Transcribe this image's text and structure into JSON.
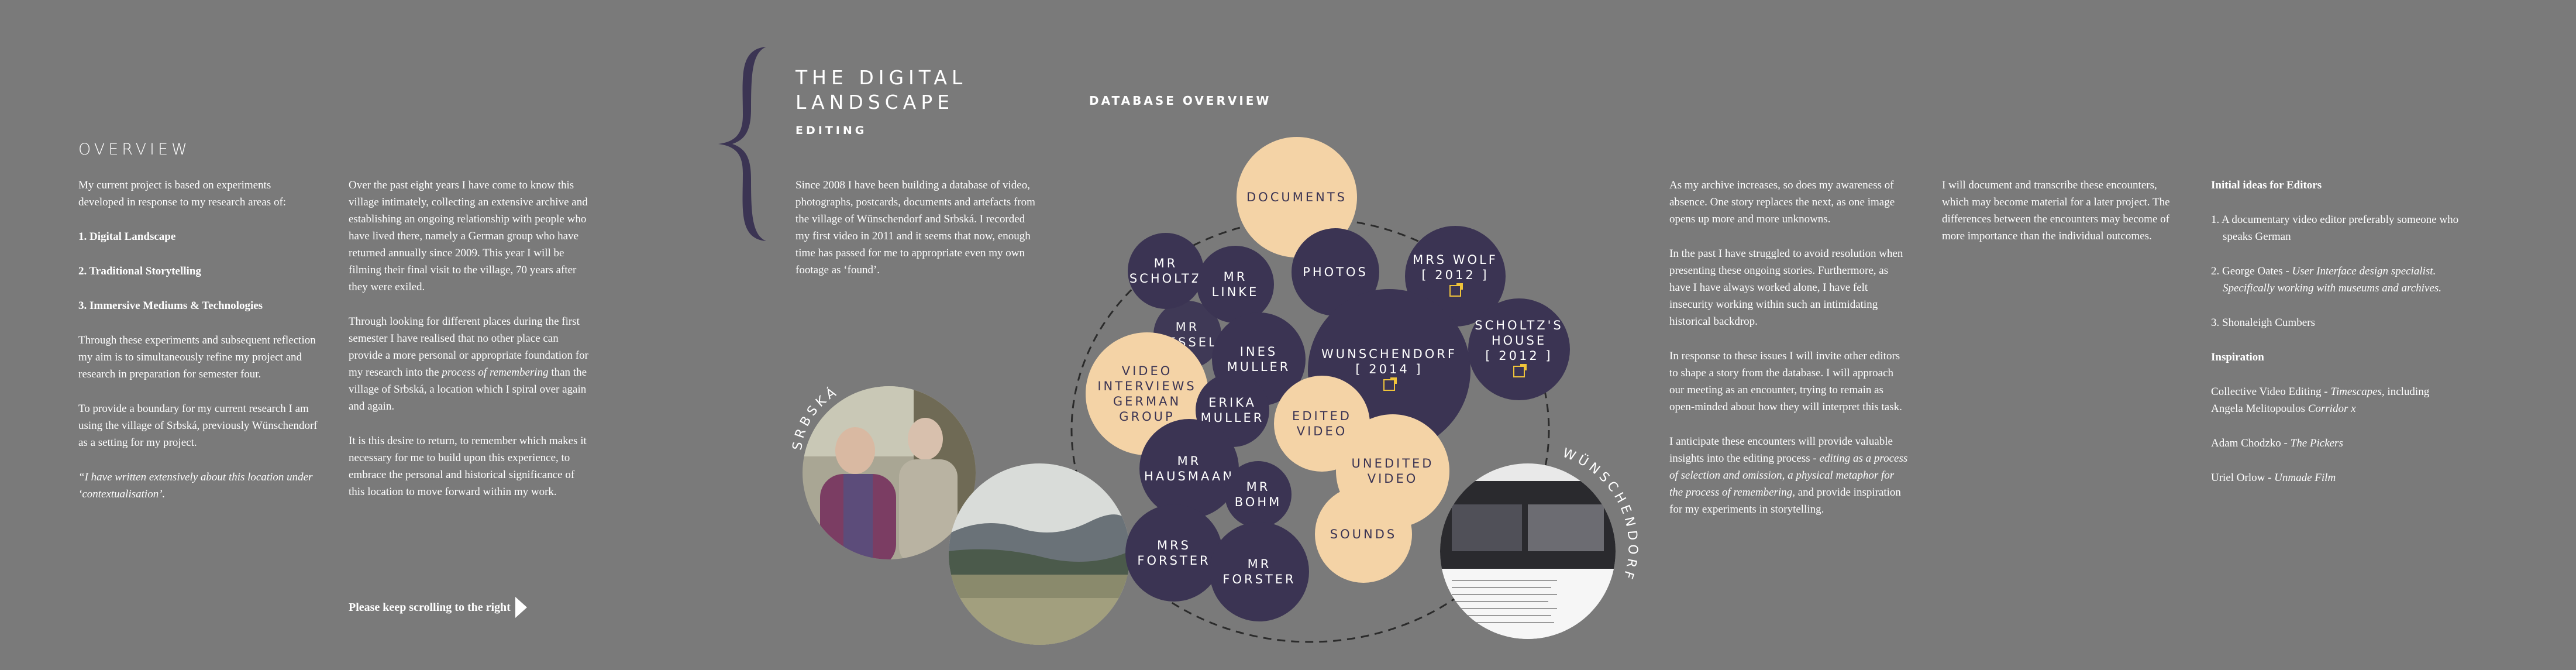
{
  "overview": {
    "title": "OVERVIEW",
    "intro": "My current project is based on experiments developed in response to my research areas of:",
    "areas": [
      "1. Digital Landscape",
      "2. Traditional Storytelling",
      "3. Immersive Mediums & Technologies"
    ],
    "p2": "Through these experiments and subsequent reflection my aim is to simultaneously refine my project and research in preparation for semester four.",
    "p3": "To provide a boundary for my current research I am using the village of Srbská, previously Wünschendorf  as a setting for my project.",
    "quote": "“I have written extensively about this location under ‘contextualisation’."
  },
  "column2": {
    "p1": "Over the past eight years I have come to know this village intimately, collecting an extensive archive and establishing an ongoing relationship with people who have lived there, namely a German group who have returned annually since 2009. This year I will be filming their final visit to the village, 70 years after they were exiled.",
    "p2a": "Through looking for different places during the first semester I have realised that no other place can provide a more personal or appropriate foundation for my research into the ",
    "p2b": "process of remembering",
    "p2c": " than the village of  Srbská, a location which I spiral over again and again.",
    "p3": "It is this desire to return, to remember which makes it  necessary for me to build upon this experience, to embrace the personal and historical significance of this location to move forward within my work.",
    "scroll": "Please keep scrolling to the right"
  },
  "digital_landscape": {
    "title_line1": "THE DIGITAL",
    "title_line2": "LANDSCAPE",
    "subtitle": "EDITING",
    "text": "Since 2008 I have been building a database of video, photographs, postcards, documents and artefacts from the village of Wünschendorf  and Srbská. I recorded my first video in 2011 and it seems that now, enough time has passed for me to appropriate even my own footage as ‘found’."
  },
  "database": {
    "title": "DATABASE OVERVIEW",
    "left_label": "SRBSKÁ",
    "right_label": "WÜNSCHENDORF",
    "nodes": {
      "documents": "DOCUMENTS",
      "mr_scholtz_1": "MR",
      "mr_scholtz_2": "SCHOLTZ",
      "mr_linke_1": "MR",
      "mr_linke_2": "LINKE",
      "photos": "PHOTOS",
      "mrs_wolf_1": "MRS WOLF",
      "mrs_wolf_2": "[ 2012 ]",
      "mr_ressel_1": "MR",
      "mr_ressel_2": "RESSEL",
      "ines_1": "INES",
      "ines_2": "MULLER",
      "wunsch_1": "WUNSCHENDORF",
      "wunsch_2": "[ 2014 ]",
      "scholtz_house_1": "SCHOLTZ'S",
      "scholtz_house_2": "HOUSE",
      "scholtz_house_3": "[ 2012 ]",
      "video_1": "VIDEO",
      "video_2": "INTERVIEWS",
      "video_3": "GERMAN",
      "video_4": "GROUP",
      "erika_1": "ERIKA",
      "erika_2": "MULLER",
      "edited_1": "EDITED",
      "edited_2": "VIDEO",
      "unedited_1": "UNEDITED",
      "unedited_2": "VIDEO",
      "hausmaan_1": "MR",
      "hausmaan_2": "HAUSMAAN",
      "bohm_1": "MR",
      "bohm_2": "BOHM",
      "sounds": "SOUNDS",
      "mrs_forster_1": "MRS",
      "mrs_forster_2": "FORSTER",
      "mr_forster_1": "MR",
      "mr_forster_2": "FORSTER"
    }
  },
  "column5": {
    "p1": "As my archive increases, so does my awareness of absence. One story replaces the next, as one image opens up more and more unknowns.",
    "p2": "In the past I have struggled to avoid resolution when presenting these ongoing stories. Furthermore, as have I have always worked alone, I have felt insecurity working within such an intimidating historical backdrop.",
    "p3": "In response to these issues I will invite other editors to shape a story from the database. I will approach our meeting as an encounter, trying to remain as open-minded about how they will interpret this task.",
    "p4a": "I anticipate these encounters will provide valuable insights into the editing process - ",
    "p4b": "editing as a process of selection and omission, a physical metaphor for the process of remembering,",
    "p4c": " and provide inspiration for my experiments in storytelling."
  },
  "column6": {
    "p1": "I will document and transcribe these encounters, which may become material for a later project. The differences between the encounters may  become of more importance than the individual outcomes."
  },
  "column7": {
    "heading1": "Initial ideas for Editors",
    "i1": "1. A documentary video editor preferably someone who speaks German",
    "i2a": "2. George Oates - ",
    "i2b": "User Interface design specialist. Specifically working with museums and archives.",
    "i3": "3. Shonaleigh Cumbers",
    "heading2": "Inspiration",
    "insp1a": "Collective Video Editing - ",
    "insp1b": "Timescapes",
    "insp1c": ", including Angela Melitopoulos ",
    "insp1d": "Corridor x",
    "insp2a": "Adam Chodzko - ",
    "insp2b": "The Pickers",
    "insp3a": "Uriel Orlow - ",
    "insp3b": "Unmade Film"
  },
  "colors": {
    "background": "#7a7a7a",
    "navy": "#3b3453",
    "tan": "#f4d3a6",
    "link_icon": "#f0c43a"
  }
}
